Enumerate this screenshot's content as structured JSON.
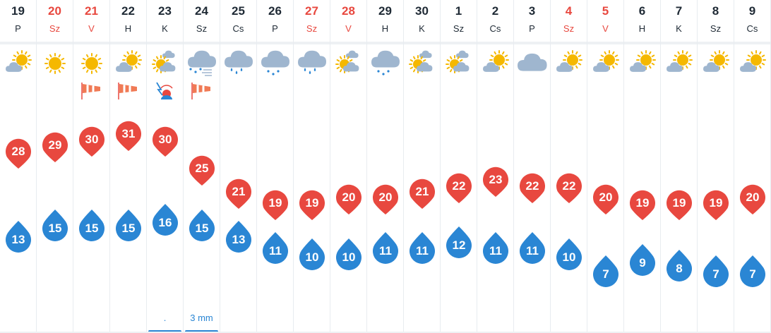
{
  "chart_data": {
    "type": "line",
    "days": [
      {
        "date": "19",
        "day": "P",
        "weekend": false,
        "icon": "sun-behind-cloud-icon",
        "extra": "",
        "max": 28,
        "min": 13,
        "precip": ""
      },
      {
        "date": "20",
        "day": "Sz",
        "weekend": true,
        "icon": "sun-icon",
        "extra": "",
        "max": 29,
        "min": 15,
        "precip": ""
      },
      {
        "date": "21",
        "day": "V",
        "weekend": true,
        "icon": "sun-icon",
        "extra": "windsock-icon",
        "max": 30,
        "min": 15,
        "precip": ""
      },
      {
        "date": "22",
        "day": "H",
        "weekend": false,
        "icon": "sun-behind-cloud-icon",
        "extra": "windsock-icon",
        "max": 31,
        "min": 15,
        "precip": ""
      },
      {
        "date": "23",
        "day": "K",
        "weekend": false,
        "icon": "partly-cloudy-icon",
        "extra": "thunder-warning-icon",
        "max": 30,
        "min": 16,
        "precip": "."
      },
      {
        "date": "24",
        "day": "Sz",
        "weekend": false,
        "icon": "cloud-wind-icon",
        "extra": "windsock-icon",
        "max": 25,
        "min": 15,
        "precip": "3 mm"
      },
      {
        "date": "25",
        "day": "Cs",
        "weekend": false,
        "icon": "rain-cloud-icon",
        "extra": "",
        "max": 21,
        "min": 13,
        "precip": ""
      },
      {
        "date": "26",
        "day": "P",
        "weekend": false,
        "icon": "light-rain-cloud-icon",
        "extra": "",
        "max": 19,
        "min": 11,
        "precip": ""
      },
      {
        "date": "27",
        "day": "Sz",
        "weekend": true,
        "icon": "rain-cloud-icon",
        "extra": "",
        "max": 19,
        "min": 10,
        "precip": ""
      },
      {
        "date": "28",
        "day": "V",
        "weekend": true,
        "icon": "partly-cloudy-icon",
        "extra": "",
        "max": 20,
        "min": 10,
        "precip": ""
      },
      {
        "date": "29",
        "day": "H",
        "weekend": false,
        "icon": "light-rain-cloud-icon",
        "extra": "",
        "max": 20,
        "min": 11,
        "precip": ""
      },
      {
        "date": "30",
        "day": "K",
        "weekend": false,
        "icon": "partly-cloudy-icon",
        "extra": "",
        "max": 21,
        "min": 11,
        "precip": ""
      },
      {
        "date": "1",
        "day": "Sz",
        "weekend": false,
        "icon": "partly-cloudy-icon",
        "extra": "",
        "max": 22,
        "min": 12,
        "precip": ""
      },
      {
        "date": "2",
        "day": "Cs",
        "weekend": false,
        "icon": "sun-behind-cloud-icon",
        "extra": "",
        "max": 23,
        "min": 11,
        "precip": ""
      },
      {
        "date": "3",
        "day": "P",
        "weekend": false,
        "icon": "cloud-icon",
        "extra": "",
        "max": 22,
        "min": 11,
        "precip": ""
      },
      {
        "date": "4",
        "day": "Sz",
        "weekend": true,
        "icon": "sun-behind-cloud-icon",
        "extra": "",
        "max": 22,
        "min": 10,
        "precip": ""
      },
      {
        "date": "5",
        "day": "V",
        "weekend": true,
        "icon": "sun-behind-cloud-icon",
        "extra": "",
        "max": 20,
        "min": 7,
        "precip": ""
      },
      {
        "date": "6",
        "day": "H",
        "weekend": false,
        "icon": "sun-behind-cloud-icon",
        "extra": "",
        "max": 19,
        "min": 9,
        "precip": ""
      },
      {
        "date": "7",
        "day": "K",
        "weekend": false,
        "icon": "sun-behind-cloud-icon",
        "extra": "",
        "max": 19,
        "min": 8,
        "precip": ""
      },
      {
        "date": "8",
        "day": "Sz",
        "weekend": false,
        "icon": "sun-behind-cloud-icon",
        "extra": "",
        "max": 19,
        "min": 7,
        "precip": ""
      },
      {
        "date": "9",
        "day": "Cs",
        "weekend": false,
        "icon": "sun-behind-cloud-icon",
        "extra": "",
        "max": 20,
        "min": 7,
        "precip": ""
      }
    ],
    "series": [
      {
        "key": "max",
        "color": "#e8483f"
      },
      {
        "key": "min",
        "color": "#2a86d4"
      }
    ],
    "ylim": [
      7,
      31
    ],
    "colors": {
      "weekend": "#e8483f",
      "weekday": "#1f2a35",
      "sun": "#f5b800",
      "cloud": "#9fb6cf",
      "rain": "#2a86d4",
      "precip_bar": "#2a86d4"
    }
  }
}
